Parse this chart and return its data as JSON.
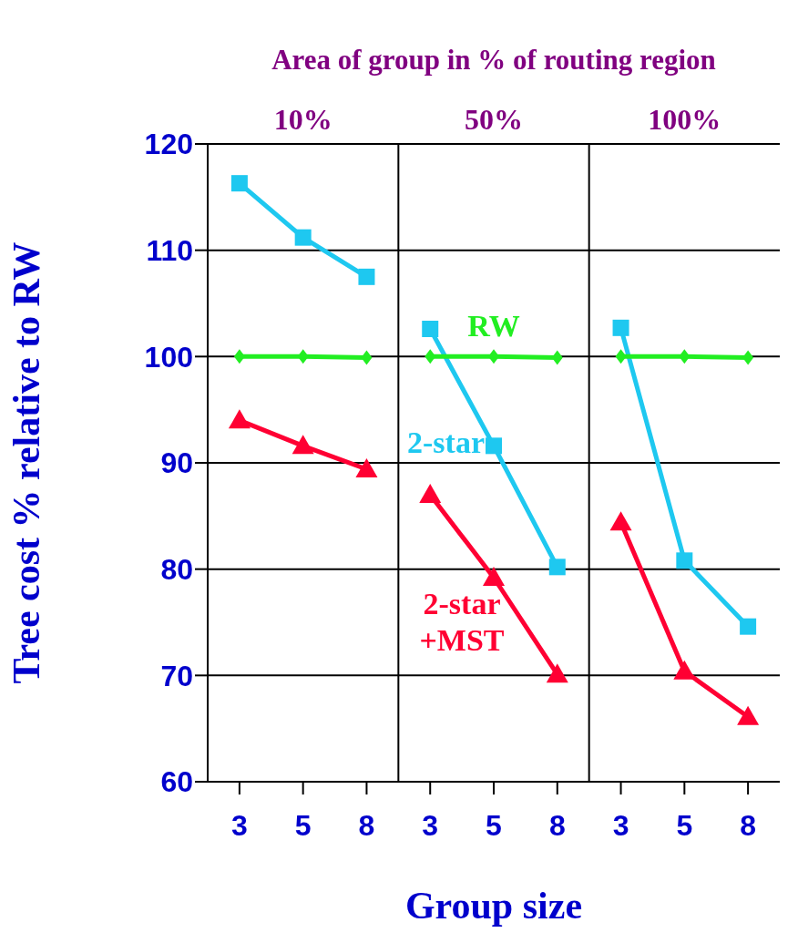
{
  "chart_data": {
    "type": "line",
    "title": "Area of group in % of routing region",
    "xlabel": "Group size",
    "ylabel": "Tree cost % relative to RW",
    "annotations": [
      "10%",
      "50%",
      "100%"
    ],
    "categories": [
      "3",
      "5",
      "8",
      "3",
      "5",
      "8",
      "3",
      "5",
      "8"
    ],
    "series": [
      {
        "name": "2-star",
        "color": "#1ec8f0",
        "marker": "square",
        "values": [
          116.3,
          111.2,
          107.5,
          102.6,
          91.6,
          80.2,
          102.7,
          80.8,
          74.6
        ]
      },
      {
        "name": "RW",
        "color": "#22ee22",
        "marker": "diamond",
        "values": [
          100,
          100,
          99.9,
          100,
          100,
          99.9,
          100,
          100,
          99.9
        ]
      },
      {
        "name": "2-star +MST",
        "color": "#ff0033",
        "marker": "triangle",
        "values": [
          94.0,
          91.6,
          89.4,
          87.0,
          79.2,
          70.1,
          84.4,
          70.4,
          66.1
        ]
      }
    ],
    "ylim": [
      60,
      120
    ],
    "yticks": [
      60,
      70,
      80,
      90,
      100,
      110,
      120
    ],
    "grid": true
  }
}
